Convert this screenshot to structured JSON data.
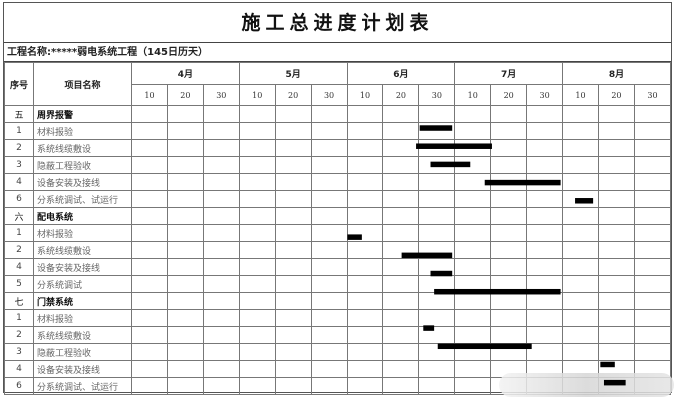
{
  "title": "施工总进度计划表",
  "project_label": "工程名称:*****弱电系统工程（145日历天）",
  "headers": {
    "seq": "序号",
    "name": "项目名称"
  },
  "months": [
    "4月",
    "5月",
    "6月",
    "7月",
    "8月"
  ],
  "days": [
    "10",
    "20",
    "30"
  ],
  "rows": [
    {
      "seq": "五",
      "name": "周界报警",
      "section": true
    },
    {
      "seq": "1",
      "name": "材料报验",
      "bar": {
        "start": "6-22",
        "end": "6-30"
      }
    },
    {
      "seq": "2",
      "name": "系统线缆敷设",
      "bar": {
        "start": "6-21",
        "end": "7-11"
      }
    },
    {
      "seq": "3",
      "name": "隐蔽工程验收",
      "bar": {
        "start": "6-25",
        "end": "7-05"
      }
    },
    {
      "seq": "4",
      "name": "设备安装及接线",
      "bar": {
        "start": "7-10",
        "end": "7-30"
      }
    },
    {
      "seq": "6",
      "name": "分系统调试、试运行",
      "bar": {
        "start": "8-05",
        "end": "8-09"
      }
    },
    {
      "seq": "六",
      "name": "配电系统",
      "section": true
    },
    {
      "seq": "1",
      "name": "材料报验",
      "bar": {
        "start": "6-02",
        "end": "6-05"
      }
    },
    {
      "seq": "2",
      "name": "系统线缆敷设",
      "bar": {
        "start": "6-17",
        "end": "6-30"
      }
    },
    {
      "seq": "4",
      "name": "设备安装及接线",
      "bar": {
        "start": "6-25",
        "end": "6-30"
      }
    },
    {
      "seq": "5",
      "name": "分系统调试",
      "bar": {
        "start": "6-26",
        "end": "7-30"
      }
    },
    {
      "seq": "七",
      "name": "门禁系统",
      "section": true
    },
    {
      "seq": "1",
      "name": "材料报验",
      "bar": {
        "start": "6-23",
        "end": "6-25"
      }
    },
    {
      "seq": "2",
      "name": "系统线缆敷设",
      "bar": {
        "start": "6-27",
        "end": "7-22"
      }
    },
    {
      "seq": "3",
      "name": "隐蔽工程验收",
      "bar": {
        "start": "8-12",
        "end": "8-15"
      }
    },
    {
      "seq": "4",
      "name": "设备安装及接线",
      "bar": {
        "start": "8-13",
        "end": "8-18"
      }
    },
    {
      "seq": "6",
      "name": "分系统调试、试运行"
    }
  ],
  "bar_color": "#000000"
}
